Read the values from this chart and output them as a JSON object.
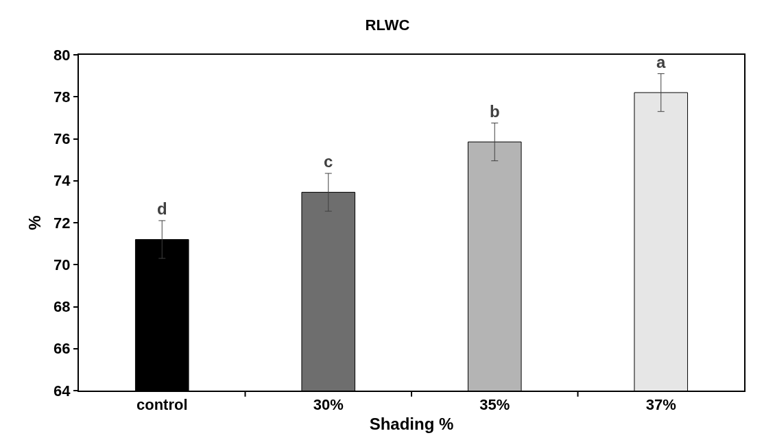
{
  "chart_data": {
    "type": "bar",
    "title": "RLWC",
    "xlabel": "Shading %",
    "ylabel": "%",
    "categories": [
      "control",
      "30%",
      "35%",
      "37%"
    ],
    "values": [
      71.2,
      73.45,
      75.85,
      78.2
    ],
    "errors": [
      0.9,
      0.9,
      0.9,
      0.9
    ],
    "colors": [
      "#000000",
      "#6e6e6e",
      "#b4b4b4",
      "#e6e6e6"
    ],
    "ylim": [
      64,
      80
    ],
    "yticks": [
      64,
      66,
      68,
      70,
      72,
      74,
      76,
      78,
      80
    ],
    "annotations": [
      "d",
      "c",
      "b",
      "a"
    ]
  }
}
